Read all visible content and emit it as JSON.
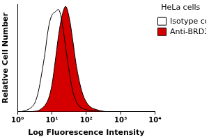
{
  "chart_data": {
    "type": "line",
    "title": "HeLa cells",
    "xlabel": "Log Fluorescence Intensity",
    "ylabel": "Relative Cell Number",
    "x": [
      1,
      1.26,
      1.58,
      2,
      2.51,
      3.16,
      3.98,
      5.01,
      6.31,
      7.94,
      10,
      12.6,
      15.8,
      20,
      25.1,
      31.6,
      39.8,
      50.1,
      63.1,
      79.4,
      100,
      126,
      158,
      200,
      251,
      316,
      398,
      501,
      631,
      794,
      1000,
      1260,
      1580,
      2000,
      2510,
      3160,
      3980,
      5010,
      6310,
      7940,
      10000
    ],
    "series": [
      {
        "name": "Isotype control",
        "color": "#000000",
        "type": "line",
        "values": [
          0,
          0,
          1,
          2,
          4,
          8,
          18,
          35,
          55,
          78,
          90,
          93,
          95,
          82,
          60,
          38,
          20,
          10,
          5,
          3,
          2,
          1,
          1,
          0.5,
          0,
          0,
          0,
          0,
          0,
          0,
          0,
          0,
          0,
          0,
          0,
          0,
          0,
          0,
          0,
          0,
          0
        ]
      },
      {
        "name": "Anti-BRD3",
        "color": "#d40000",
        "type": "area",
        "values": [
          0,
          0,
          0,
          0,
          0,
          0.5,
          1,
          3,
          6,
          12,
          25,
          48,
          72,
          90,
          98,
          88,
          68,
          45,
          28,
          16,
          9,
          5,
          3,
          2,
          1,
          0.5,
          0,
          0,
          0,
          0,
          0,
          0,
          0,
          0,
          0,
          0,
          0,
          0,
          0,
          0,
          0
        ]
      }
    ],
    "xlim": [
      1,
      10000
    ],
    "xticks": [
      {
        "value": 1,
        "label": "10⁰"
      },
      {
        "value": 10,
        "label": "10¹"
      },
      {
        "value": 100,
        "label": "10²"
      },
      {
        "value": 1000,
        "label": "10³"
      },
      {
        "value": 10000,
        "label": "10⁴"
      }
    ],
    "ylim": [
      0,
      100
    ],
    "yticks": [],
    "log": "x",
    "grid": false,
    "legend": "top right",
    "tick_labels": "x"
  }
}
